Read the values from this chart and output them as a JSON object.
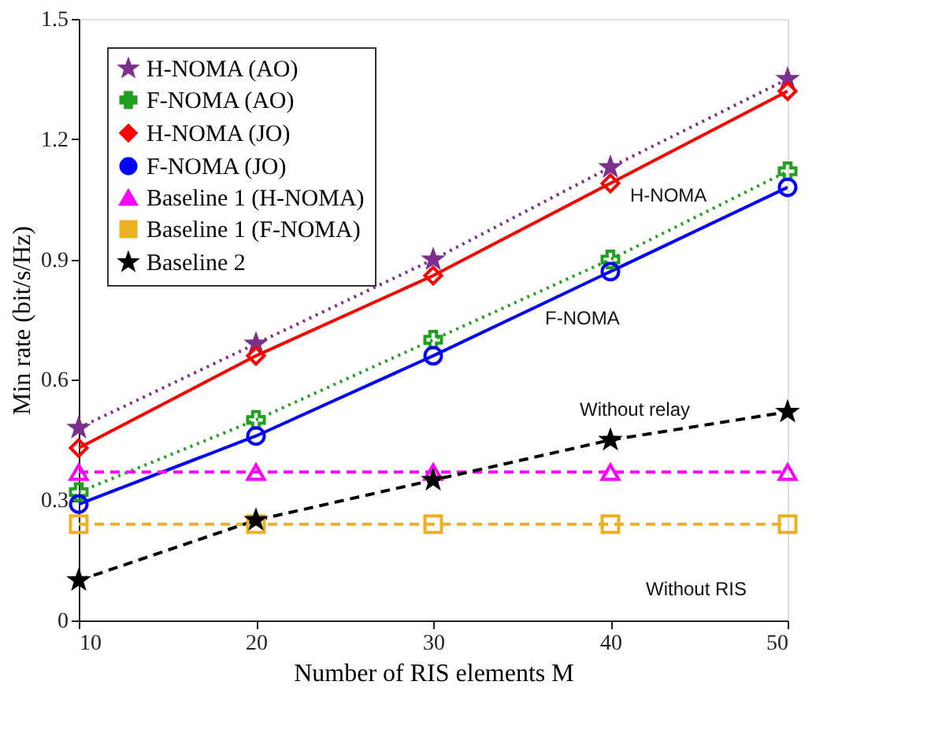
{
  "chart_data": {
    "type": "line",
    "xlabel": "Number of RIS elements M",
    "ylabel": "Min rate (bit/s/Hz)",
    "x": [
      10,
      20,
      30,
      40,
      50
    ],
    "xlim": [
      10,
      50
    ],
    "xticks": [
      10,
      20,
      30,
      40,
      50
    ],
    "ylim": [
      0,
      1.5
    ],
    "yticks": [
      {
        "value": 0,
        "label": "0"
      },
      0.3,
      0.6,
      0.9,
      1.2,
      1.5
    ],
    "grid": false,
    "legend": "top left",
    "series": [
      {
        "name": "H-NOMA (AO)",
        "color": "#7e2f8e",
        "marker": "star",
        "line_style": "dotted",
        "values": [
          0.48,
          0.69,
          0.9,
          1.13,
          1.35
        ]
      },
      {
        "name": "F-NOMA (AO)",
        "color": "#1fa01f",
        "marker": "cross",
        "line_style": "dotted",
        "values": [
          0.32,
          0.5,
          0.7,
          0.9,
          1.12
        ]
      },
      {
        "name": "H-NOMA (JO)",
        "color": "#ff0000",
        "marker": "diamond",
        "line_style": "solid",
        "values": [
          0.43,
          0.66,
          0.86,
          1.09,
          1.32
        ]
      },
      {
        "name": "F-NOMA (JO)",
        "color": "#0000ff",
        "marker": "circle",
        "line_style": "solid",
        "values": [
          0.29,
          0.46,
          0.66,
          0.87,
          1.08
        ]
      },
      {
        "name": "Baseline 1 (H-NOMA)",
        "color": "#ff00ff",
        "marker": "triangle",
        "line_style": "dashed",
        "values": [
          0.37,
          0.37,
          0.37,
          0.37,
          0.37
        ]
      },
      {
        "name": "Baseline 1 (F-NOMA)",
        "color": "#edb120",
        "marker": "square",
        "line_style": "dashed",
        "values": [
          0.24,
          0.24,
          0.24,
          0.24,
          0.24
        ]
      },
      {
        "name": "Baseline 2",
        "color": "#000000",
        "marker": "star",
        "line_style": "dashed",
        "values": [
          0.1,
          0.25,
          0.35,
          0.45,
          0.52
        ]
      }
    ],
    "annotations": [
      "H-NOMA",
      "F-NOMA",
      "Without relay",
      "Without RIS"
    ]
  }
}
